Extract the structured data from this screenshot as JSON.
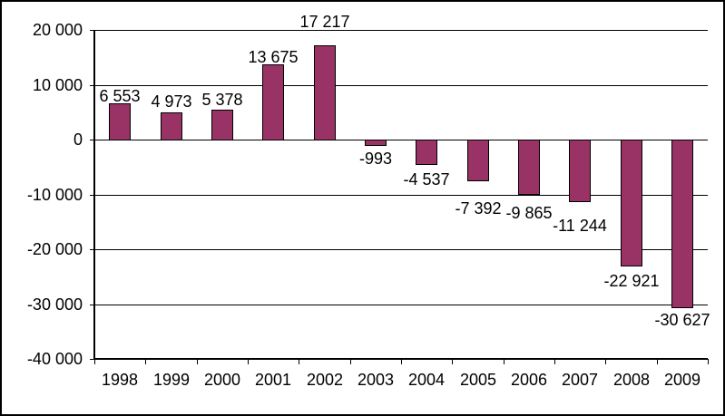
{
  "chart_data": {
    "type": "bar",
    "title": "",
    "xlabel": "",
    "ylabel": "",
    "categories": [
      "1998",
      "1999",
      "2000",
      "2001",
      "2002",
      "2003",
      "2004",
      "2005",
      "2006",
      "2007",
      "2008",
      "2009"
    ],
    "values": [
      6553,
      4973,
      5378,
      13675,
      17217,
      -993,
      -4537,
      -7392,
      -9865,
      -11244,
      -22921,
      -30627
    ],
    "data_labels": [
      "6 553",
      "4 973",
      "5 378",
      "13 675",
      "17 217",
      "-993",
      "-4 537",
      "-7 392",
      "-9 865",
      "-11 244",
      "-22 921",
      "-30 627"
    ],
    "ylim": [
      -40000,
      20000
    ],
    "ytick_step": 10000,
    "ytick_labels": [
      "20 000",
      "10 000",
      "0",
      "-10 000",
      "-20 000",
      "-30 000",
      "-40 000"
    ],
    "ytick_values": [
      20000,
      10000,
      0,
      -10000,
      -20000,
      -30000,
      -40000
    ],
    "grid": true,
    "legend": false,
    "colors": {
      "bar_fill": "#993366",
      "bar_border": "#000000",
      "axis": "#000000",
      "grid": "#000000",
      "background": "#ffffff",
      "text": "#000000"
    }
  }
}
